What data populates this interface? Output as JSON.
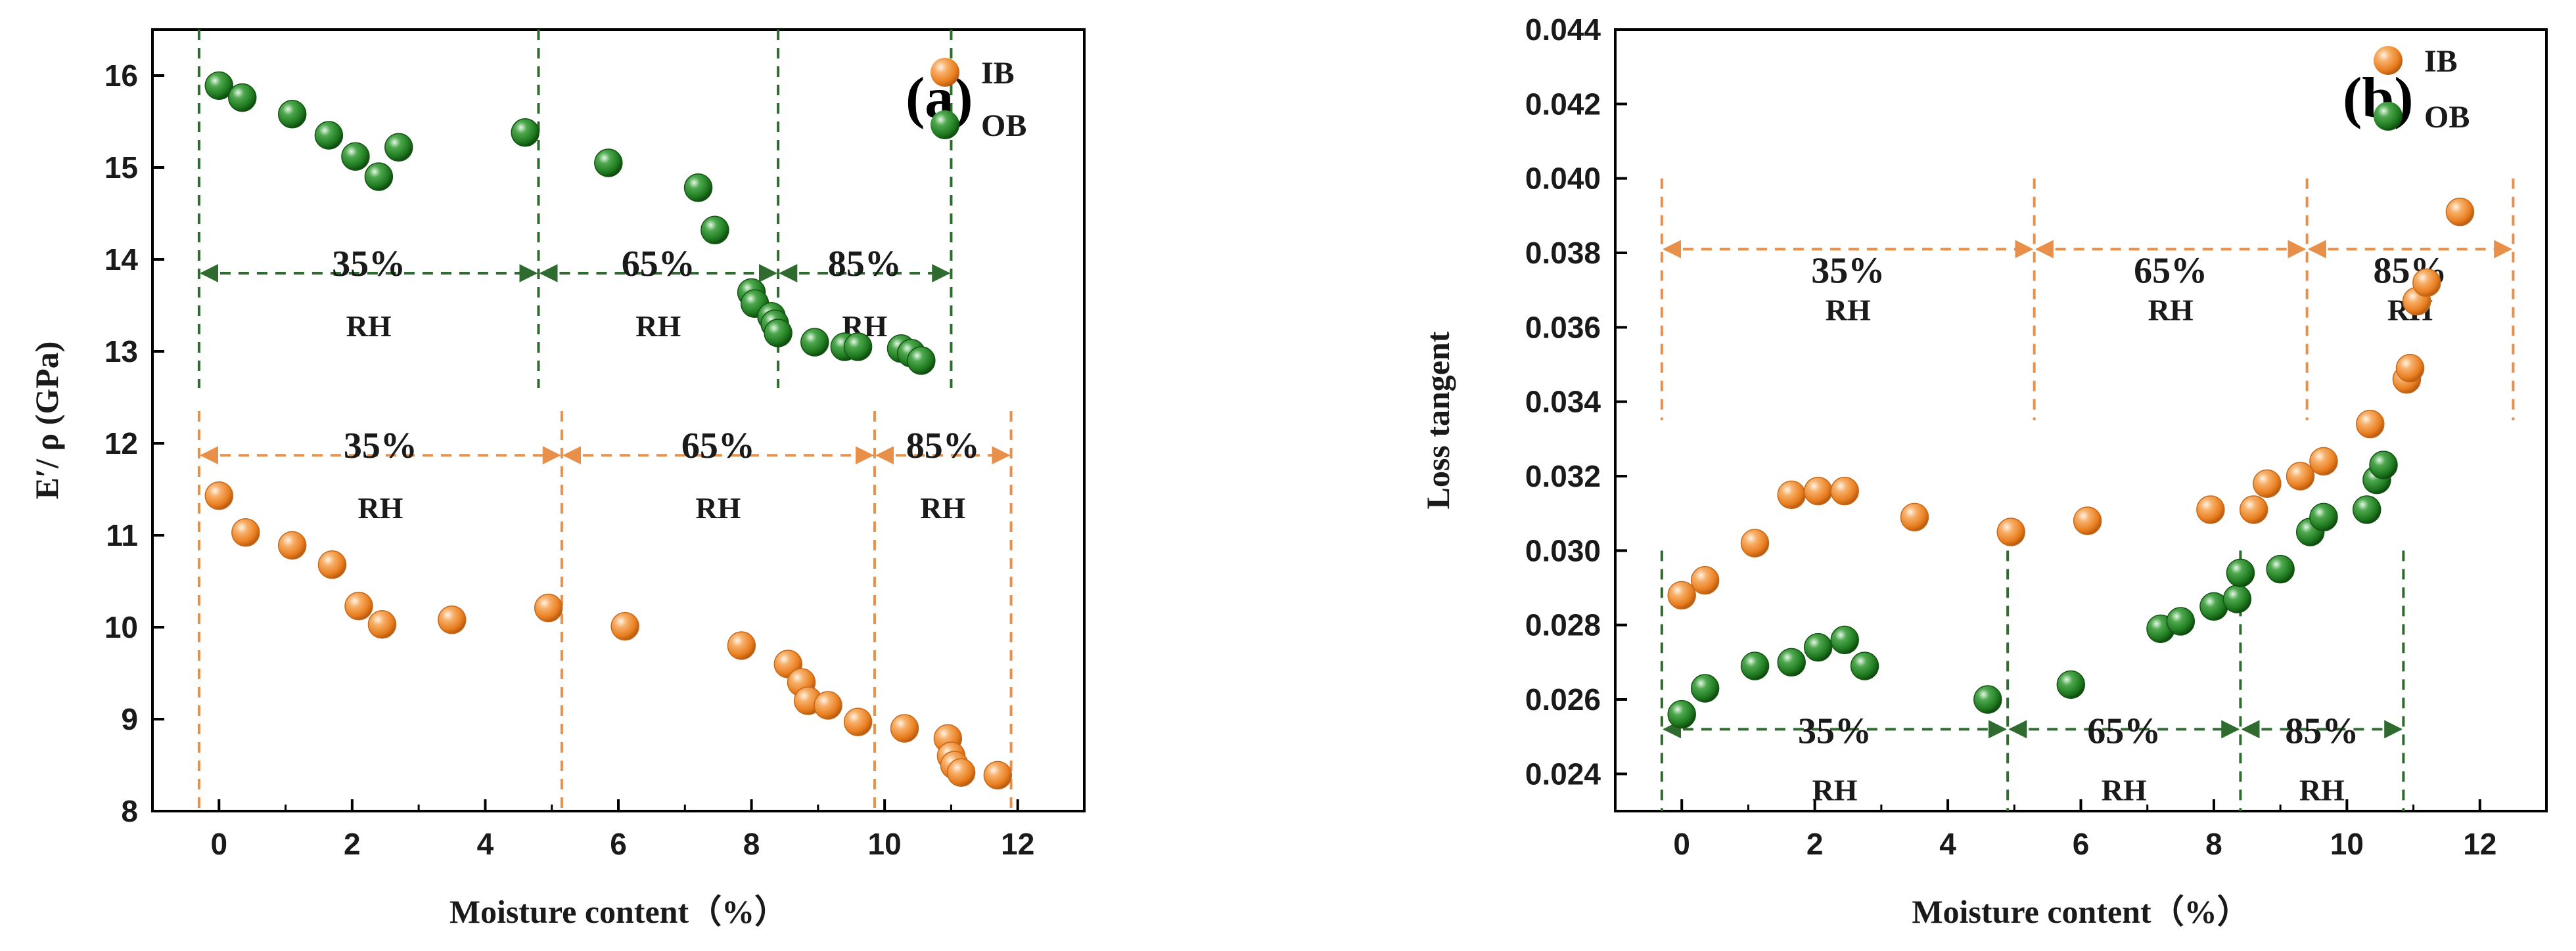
{
  "chart_data": [
    {
      "type": "scatter",
      "panel_label": "(a)",
      "xlabel": "Moisture content（%）",
      "ylabel": "E′/ ρ (GPa)",
      "xlim": [
        -1,
        13
      ],
      "ylim": [
        8,
        16.5
      ],
      "xticks": [
        0,
        2,
        4,
        6,
        8,
        10,
        12
      ],
      "yticks": [
        8,
        9,
        10,
        11,
        12,
        13,
        14,
        15,
        16
      ],
      "series": [
        {
          "name": "IB",
          "color": "#f08c2e",
          "x": [
            0.0,
            0.4,
            1.1,
            1.7,
            2.1,
            2.45,
            3.5,
            4.95,
            6.1,
            7.85,
            8.55,
            8.75,
            8.85,
            9.15,
            9.6,
            10.3,
            10.95,
            11.0,
            11.05,
            11.15,
            11.7
          ],
          "y": [
            11.43,
            11.03,
            10.89,
            10.68,
            10.23,
            10.03,
            10.08,
            10.21,
            10.01,
            9.8,
            9.6,
            9.4,
            9.2,
            9.15,
            8.97,
            8.9,
            8.79,
            8.6,
            8.5,
            8.42,
            8.39
          ]
        },
        {
          "name": "OB",
          "color": "#2a7d2a",
          "x": [
            0.0,
            0.35,
            1.1,
            1.65,
            2.05,
            2.4,
            2.7,
            4.6,
            5.85,
            7.2,
            7.45,
            8.0,
            8.05,
            8.3,
            8.35,
            8.4,
            8.95,
            9.4,
            9.6,
            10.25,
            10.4,
            10.55
          ],
          "y": [
            15.89,
            15.76,
            15.58,
            15.35,
            15.12,
            14.9,
            15.22,
            15.38,
            15.05,
            14.78,
            14.32,
            13.64,
            13.52,
            13.38,
            13.3,
            13.2,
            13.1,
            13.05,
            13.05,
            13.03,
            12.98,
            12.9
          ]
        }
      ],
      "regions": [
        {
          "group": "OB",
          "color": "#2f6b2f",
          "label_pct": [
            "35%",
            "65%",
            "85%"
          ],
          "label_rh": "RH",
          "boundaries_x": [
            -0.3,
            4.8,
            8.4,
            11.0
          ],
          "arrow_y": 13.85
        },
        {
          "group": "IB",
          "color": "#e8904a",
          "label_pct": [
            "35%",
            "65%",
            "85%"
          ],
          "label_rh": "RH",
          "boundaries_x": [
            -0.3,
            5.15,
            9.85,
            11.9
          ],
          "arrow_y": 11.87
        }
      ],
      "legend": {
        "position": "top-right",
        "entries": [
          "IB",
          "OB"
        ]
      }
    },
    {
      "type": "scatter",
      "panel_label": "(b)",
      "xlabel": "Moisture content（%）",
      "ylabel": "Loss tangent",
      "xlim": [
        -1,
        13
      ],
      "ylim": [
        0.023,
        0.044
      ],
      "xticks": [
        0,
        2,
        4,
        6,
        8,
        10,
        12
      ],
      "yticks": [
        "0.024",
        "0.026",
        "0.028",
        "0.030",
        "0.032",
        "0.034",
        "0.036",
        "0.038",
        "0.040",
        "0.042",
        "0.044"
      ],
      "series": [
        {
          "name": "IB",
          "color": "#f08c2e",
          "x": [
            0.0,
            0.35,
            1.1,
            1.65,
            2.05,
            2.45,
            3.5,
            4.95,
            6.1,
            7.95,
            8.6,
            8.8,
            9.3,
            9.65,
            10.35,
            10.9,
            10.95,
            11.05,
            11.2,
            11.7
          ],
          "y": [
            0.0288,
            0.0292,
            0.0302,
            0.0315,
            0.0316,
            0.0316,
            0.0309,
            0.0305,
            0.0308,
            0.0311,
            0.0311,
            0.0318,
            0.032,
            0.0324,
            0.0334,
            0.0346,
            0.0349,
            0.0367,
            0.0372,
            0.0391
          ]
        },
        {
          "name": "OB",
          "color": "#2a7d2a",
          "x": [
            0.0,
            0.35,
            1.1,
            1.65,
            2.05,
            2.45,
            2.75,
            4.6,
            5.85,
            7.2,
            7.5,
            8.0,
            8.35,
            8.4,
            9.0,
            9.45,
            9.65,
            10.3,
            10.45,
            10.55
          ],
          "y": [
            0.0256,
            0.0263,
            0.0269,
            0.027,
            0.0274,
            0.0276,
            0.0269,
            0.026,
            0.0264,
            0.0279,
            0.0281,
            0.0285,
            0.0287,
            0.0294,
            0.0295,
            0.0305,
            0.0309,
            0.0311,
            0.0319,
            0.0323
          ]
        }
      ],
      "regions": [
        {
          "group": "IB",
          "color": "#e8904a",
          "label_pct": [
            "35%",
            "65%",
            "85%"
          ],
          "label_rh": "RH",
          "boundaries_x": [
            -0.3,
            5.3,
            9.4,
            12.5
          ],
          "arrow_y": 0.0381
        },
        {
          "group": "OB",
          "color": "#2f6b2f",
          "label_pct": [
            "35%",
            "65%",
            "85%"
          ],
          "label_rh": "RH",
          "boundaries_x": [
            -0.3,
            4.9,
            8.4,
            10.85
          ],
          "arrow_y": 0.0252
        }
      ],
      "legend": {
        "position": "top-right",
        "entries": [
          "IB",
          "OB"
        ]
      }
    }
  ]
}
